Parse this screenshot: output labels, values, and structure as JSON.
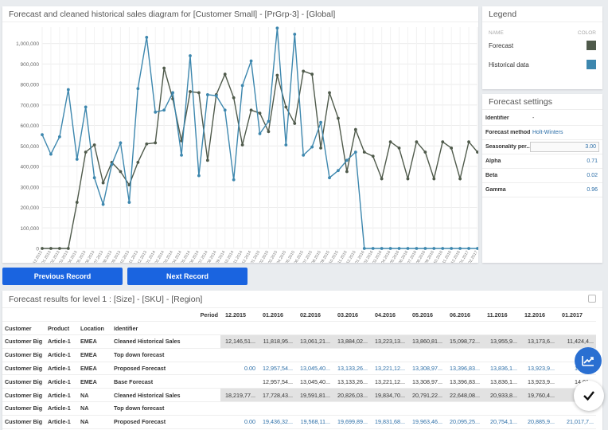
{
  "chart_panel": {
    "title": "Forecast and cleaned historical sales diagram for [Customer Small] - [PrGrp-3] - [Global]"
  },
  "legend": {
    "title": "Legend",
    "name_header": "NAME",
    "color_header": "COLOR",
    "items": [
      {
        "label": "Forecast",
        "color": "#4f5a4b"
      },
      {
        "label": "Historical data",
        "color": "#3d87ae"
      }
    ]
  },
  "settings": {
    "title": "Forecast settings",
    "rows": [
      {
        "label": "Identifier",
        "value": "-"
      },
      {
        "label": "Forecast method",
        "value": "Holt-Winters"
      },
      {
        "label": "Seasonality per...",
        "value": "3.00"
      },
      {
        "label": "Alpha",
        "value": "0.71"
      },
      {
        "label": "Beta",
        "value": "0.02"
      },
      {
        "label": "Gamma",
        "value": "0.96"
      }
    ]
  },
  "buttons": {
    "previous": "Previous Record",
    "next": "Next Record"
  },
  "table": {
    "title": "Forecast results for level 1 : [Size] - [SKU] - [Region]",
    "period_label": "Period",
    "headers": [
      "Customer",
      "Product",
      "Location",
      "Identifier"
    ],
    "periods": [
      "12.2015",
      "01.2016",
      "02.2016",
      "03.2016",
      "04.2016",
      "05.2016",
      "06.2016",
      "11.2016",
      "12.2016",
      "01.2017"
    ],
    "rows": [
      {
        "customer": "Customer Big",
        "product": "Article-1",
        "location": "EMEA",
        "identifier": "Cleaned Historical Sales",
        "values": [
          "12,146,51...",
          "11,818,95...",
          "13,061,21...",
          "13,884,02...",
          "13,223,13...",
          "13,860,81...",
          "15,098,72...",
          "13,955,9...",
          "13,173,6...",
          "11,424,4..."
        ]
      },
      {
        "customer": "Customer Big",
        "product": "Article-1",
        "location": "EMEA",
        "identifier": "Top down forecast",
        "values": [
          "",
          "",
          "",
          "",
          "",
          "",
          "",
          "",
          "",
          ""
        ]
      },
      {
        "customer": "Customer Big",
        "product": "Article-1",
        "location": "EMEA",
        "identifier": "Proposed Forecast",
        "values": [
          "0.00",
          "12,957,54...",
          "13,045,40...",
          "13,133,26...",
          "13,221,12...",
          "13,308,97...",
          "13,396,83...",
          "13,836,1...",
          "13,923,9...",
          "14,01..."
        ]
      },
      {
        "customer": "Customer Big",
        "product": "Article-1",
        "location": "EMEA",
        "identifier": "Base Forecast",
        "values": [
          "",
          "12,957,54...",
          "13,045,40...",
          "13,133,26...",
          "13,221,12...",
          "13,308,97...",
          "13,396,83...",
          "13,836,1...",
          "13,923,9...",
          "14,01..."
        ]
      },
      {
        "customer": "Customer Big",
        "product": "Article-1",
        "location": "NA",
        "identifier": "Cleaned Historical Sales",
        "values": [
          "18,219,77...",
          "17,728,43...",
          "19,591,81...",
          "20,826,03...",
          "19,834,70...",
          "20,791,22...",
          "22,648,08...",
          "20,933,8...",
          "19,760,4...",
          "17,..."
        ]
      },
      {
        "customer": "Customer Big",
        "product": "Article-1",
        "location": "NA",
        "identifier": "Top down forecast",
        "values": [
          "",
          "",
          "",
          "",
          "",
          "",
          "",
          "",
          "",
          ""
        ]
      },
      {
        "customer": "Customer Big",
        "product": "Article-1",
        "location": "NA",
        "identifier": "Proposed Forecast",
        "values": [
          "0.00",
          "19,436,32...",
          "19,568,11...",
          "19,699,89...",
          "19,831,68...",
          "19,963,46...",
          "20,095,25...",
          "20,754,1...",
          "20,885,9...",
          "21,017,7..."
        ]
      }
    ]
  },
  "chart_data": {
    "type": "line",
    "x": [
      "12.2012",
      "01.2013",
      "02.2013",
      "03.2013",
      "04.2013",
      "05.2013",
      "06.2013",
      "07.2013",
      "08.2013",
      "09.2013",
      "10.2013",
      "11.2013",
      "12.2013",
      "01.2014",
      "02.2014",
      "03.2014",
      "04.2014",
      "05.2014",
      "06.2014",
      "07.2014",
      "08.2014",
      "09.2014",
      "10.2014",
      "11.2014",
      "12.2014",
      "01.2015",
      "02.2015",
      "03.2015",
      "04.2015",
      "05.2015",
      "06.2015",
      "07.2015",
      "08.2015",
      "09.2015",
      "10.2015",
      "11.2015",
      "12.2015",
      "01.2016",
      "02.2016",
      "03.2016",
      "04.2016",
      "05.2016",
      "06.2016",
      "07.2016",
      "08.2016",
      "09.2016",
      "10.2016",
      "11.2016",
      "12.2016",
      "01.2017",
      "02.2017"
    ],
    "x_tick_labels": [
      "12.2012",
      "01.2013",
      "02.2013",
      "03.2013",
      "04.2013",
      "05.2013",
      "06.2013",
      "07.2013",
      "08.2013",
      "09.2013",
      "10.2013",
      "11.2013",
      "12.2013",
      "01.2014",
      "02.2014",
      "03.2014",
      "04.2014",
      "05.2014",
      "06.2014",
      "07.2014",
      "08.2014",
      "09.2014",
      "10.2014",
      "11.2014",
      "12.2014",
      "01.2015",
      "02.2015",
      "03.2015",
      "04.2015",
      "05.2015",
      "06.2015",
      "07.2015",
      "08.2015",
      "09.2015",
      "10.2015",
      "11.2015",
      "12.2015",
      "01.2016",
      "02.2016",
      "03.2016",
      "04.2016",
      "05.2016",
      "06.2016",
      "07.2016",
      "08.2016",
      "09.2016",
      "10.2016",
      "11.2016",
      "12.2016",
      "01.2017",
      "02.2017"
    ],
    "y_ticks": [
      "0",
      "100,000",
      "200,000",
      "300,000",
      "400,000",
      "500,000",
      "600,000",
      "700,000",
      "800,000",
      "900,000",
      "1,000,000"
    ],
    "ylim": [
      0,
      1080000
    ],
    "grid": true,
    "series": [
      {
        "name": "Forecast",
        "color": "#4f5a4b",
        "values": [
          0,
          0,
          0,
          0,
          225000,
          470000,
          505000,
          320000,
          420000,
          375000,
          310000,
          420000,
          510000,
          515000,
          880000,
          730000,
          525000,
          765000,
          760000,
          430000,
          750000,
          850000,
          735000,
          505000,
          675000,
          660000,
          570000,
          845000,
          690000,
          610000,
          865000,
          850000,
          490000,
          760000,
          635000,
          375000,
          580000,
          470000,
          450000,
          340000,
          520000,
          490000,
          340000,
          520000,
          470000,
          340000,
          520000,
          490000,
          340000,
          520000,
          470000
        ]
      },
      {
        "name": "Historical data",
        "color": "#3d87ae",
        "values": [
          555000,
          460000,
          545000,
          775000,
          435000,
          690000,
          345000,
          215000,
          410000,
          515000,
          225000,
          780000,
          1030000,
          665000,
          675000,
          760000,
          455000,
          940000,
          355000,
          750000,
          745000,
          675000,
          335000,
          795000,
          915000,
          560000,
          620000,
          1075000,
          505000,
          1045000,
          455000,
          495000,
          615000,
          345000,
          380000,
          430000,
          470000,
          0,
          0,
          0,
          0,
          0,
          0,
          0,
          0,
          0,
          0,
          0,
          0,
          0,
          0
        ]
      }
    ]
  }
}
